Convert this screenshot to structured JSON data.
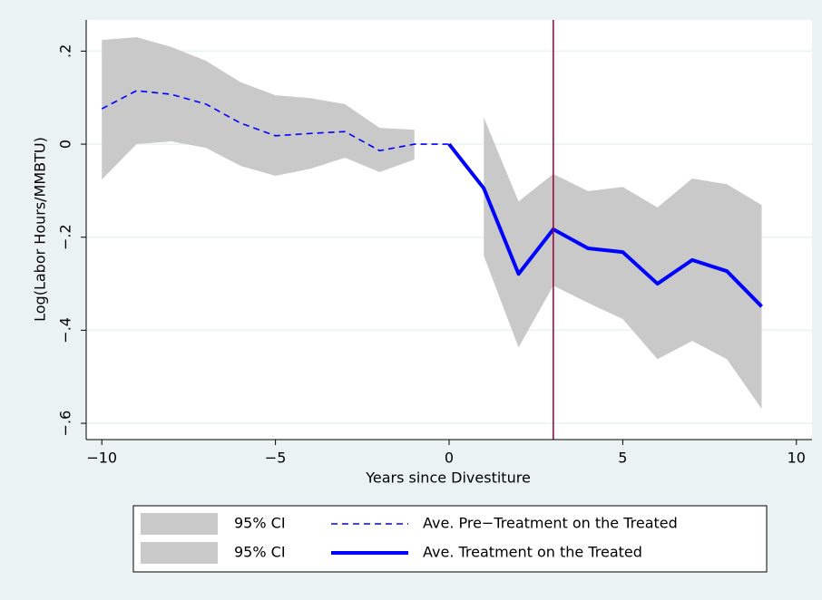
{
  "chart_data": {
    "type": "line",
    "xlabel": "Years since Divestiture",
    "ylabel": "Log(Labor Hours/MMBTU)",
    "x": [
      -10,
      -9,
      -8,
      -7,
      -6,
      -5,
      -4,
      -3,
      -2,
      -1,
      0,
      1,
      2,
      3,
      4,
      5,
      6,
      7,
      8,
      9
    ],
    "series": [
      {
        "name": "95% CI",
        "kind": "band",
        "color": "#c9c9c9",
        "upper": [
          0.224,
          0.23,
          0.209,
          0.179,
          0.133,
          0.105,
          0.099,
          0.086,
          0.035,
          0.031,
          null,
          null,
          null,
          null,
          null,
          null,
          null,
          null,
          null,
          null
        ],
        "lower": [
          -0.076,
          0,
          0.006,
          -0.008,
          -0.047,
          -0.068,
          -0.053,
          -0.029,
          -0.06,
          -0.033,
          null,
          null,
          null,
          null,
          null,
          null,
          null,
          null,
          null,
          null
        ]
      },
      {
        "name": "Ave. Pre−Treatment on the Treated",
        "kind": "line",
        "dashed": true,
        "color": "#0000ff",
        "values": [
          0.076,
          0.115,
          0.107,
          0.086,
          0.045,
          0.018,
          0.023,
          0.027,
          -0.014,
          0,
          0,
          null,
          null,
          null,
          null,
          null,
          null,
          null,
          null,
          null
        ]
      },
      {
        "name": "95% CI",
        "kind": "band",
        "color": "#c9c9c9",
        "upper": [
          null,
          null,
          null,
          null,
          null,
          null,
          null,
          null,
          null,
          null,
          null,
          0.057,
          -0.123,
          -0.064,
          -0.101,
          -0.092,
          -0.136,
          -0.074,
          -0.086,
          -0.131
        ],
        "lower": [
          null,
          null,
          null,
          null,
          null,
          null,
          null,
          null,
          null,
          null,
          null,
          -0.24,
          -0.437,
          -0.304,
          -0.341,
          -0.376,
          -0.462,
          -0.423,
          -0.462,
          -0.569
        ]
      },
      {
        "name": "Ave. Treatment on the Treated",
        "kind": "line",
        "dashed": false,
        "color": "#0000ff",
        "values": [
          null,
          null,
          null,
          null,
          null,
          null,
          null,
          null,
          null,
          null,
          0,
          -0.095,
          -0.279,
          -0.183,
          -0.224,
          -0.232,
          -0.3,
          -0.249,
          -0.273,
          -0.349
        ]
      }
    ],
    "xline": 3,
    "xline_color": "#990033",
    "xlim": [
      -10.45,
      10.45
    ],
    "xticks": [
      {
        "value": -10,
        "label": "−10"
      },
      {
        "value": -5,
        "label": "−5"
      },
      0,
      5,
      10
    ],
    "ylim": [
      -0.635,
      0.267
    ],
    "yticks": [
      {
        "value": -0.6,
        "label": "−.6"
      },
      {
        "value": -0.4,
        "label": "−.4"
      },
      {
        "value": -0.2,
        "label": "−.2"
      },
      0,
      {
        "value": 0.2,
        "label": ".2"
      }
    ],
    "grid": true
  }
}
